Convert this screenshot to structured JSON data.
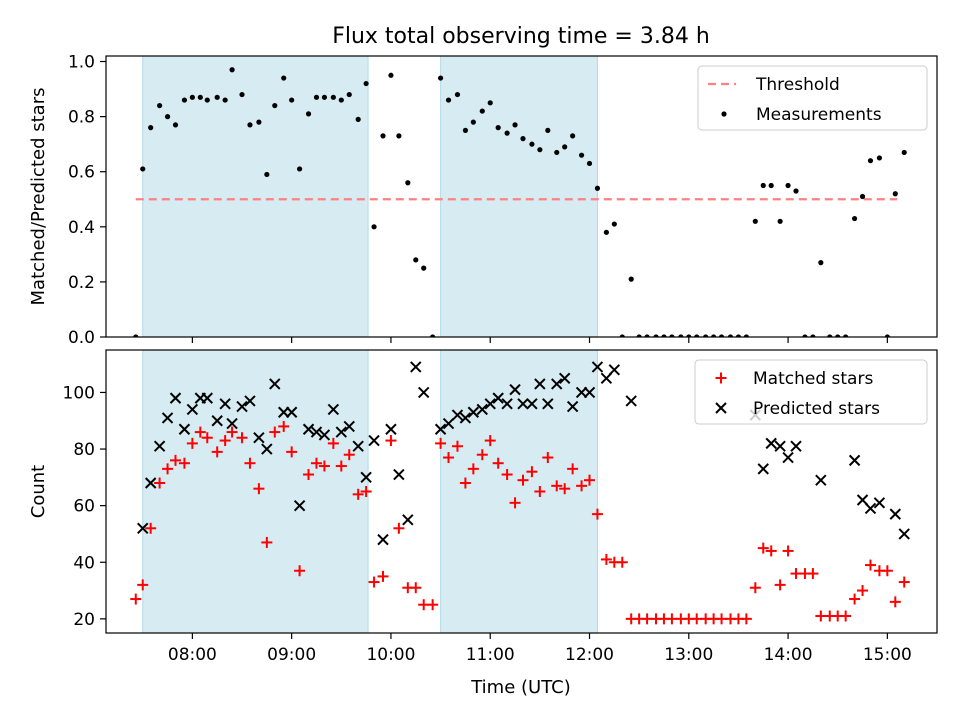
{
  "title": "Flux total observing time = 3.84 h",
  "xlabel": "Time (UTC)",
  "xticks": [
    {
      "t": 8,
      "label": "08:00"
    },
    {
      "t": 9,
      "label": "09:00"
    },
    {
      "t": 10,
      "label": "10:00"
    },
    {
      "t": 11,
      "label": "11:00"
    },
    {
      "t": 12,
      "label": "12:00"
    },
    {
      "t": 13,
      "label": "13:00"
    },
    {
      "t": 14,
      "label": "14:00"
    },
    {
      "t": 15,
      "label": "15:00"
    }
  ],
  "colors": {
    "shade": "#add8e6",
    "threshold": "#ff8080",
    "measurement": "#000000",
    "matched": "#ff0000",
    "predicted": "#000000"
  },
  "chart_data": [
    {
      "type": "scatter",
      "panel": "top",
      "ylabel": "Matched/Predicted stars",
      "xlim": [
        7.13,
        15.5
      ],
      "ylim": [
        0,
        1.02
      ],
      "yticks": [
        "0.0",
        "0.2",
        "0.4",
        "0.6",
        "0.8",
        "1.0"
      ],
      "ytick_values": [
        0,
        0.2,
        0.4,
        0.6,
        0.8,
        1.0
      ],
      "shaded_intervals": [
        [
          7.5,
          9.77
        ],
        [
          10.5,
          12.08
        ]
      ],
      "threshold": {
        "name": "Threshold",
        "y": 0.5,
        "x_range": [
          7.43,
          15.1
        ]
      },
      "legend": {
        "position": "top-right",
        "entries": [
          "Threshold",
          "Measurements"
        ]
      },
      "series": [
        {
          "name": "Measurements",
          "x": [
            7.43,
            7.5,
            7.58,
            7.67,
            7.75,
            7.83,
            7.92,
            8.0,
            8.08,
            8.15,
            8.25,
            8.33,
            8.4,
            8.5,
            8.58,
            8.67,
            8.75,
            8.83,
            8.92,
            9.0,
            9.08,
            9.17,
            9.25,
            9.33,
            9.42,
            9.5,
            9.58,
            9.67,
            9.75,
            9.83,
            9.92,
            10.0,
            10.08,
            10.17,
            10.25,
            10.33,
            10.42,
            10.5,
            10.58,
            10.67,
            10.75,
            10.83,
            10.92,
            11.0,
            11.08,
            11.17,
            11.25,
            11.33,
            11.42,
            11.5,
            11.58,
            11.67,
            11.75,
            11.83,
            11.92,
            12.0,
            12.08,
            12.17,
            12.25,
            12.33,
            12.42,
            12.5,
            12.58,
            12.67,
            12.75,
            12.83,
            12.92,
            13.0,
            13.08,
            13.17,
            13.25,
            13.33,
            13.42,
            13.5,
            13.58,
            13.67,
            13.75,
            13.83,
            13.92,
            14.0,
            14.08,
            14.17,
            14.25,
            14.33,
            14.42,
            14.5,
            14.58,
            14.67,
            14.75,
            14.83,
            14.92,
            15.0,
            15.08,
            15.17
          ],
          "y": [
            0.0,
            0.61,
            0.76,
            0.84,
            0.8,
            0.77,
            0.86,
            0.87,
            0.87,
            0.86,
            0.87,
            0.86,
            0.97,
            0.88,
            0.77,
            0.78,
            0.59,
            0.84,
            0.94,
            0.86,
            0.61,
            0.81,
            0.87,
            0.87,
            0.87,
            0.86,
            0.88,
            0.79,
            0.92,
            0.4,
            0.73,
            0.95,
            0.73,
            0.56,
            0.28,
            0.25,
            0.0,
            0.94,
            0.86,
            0.88,
            0.75,
            0.78,
            0.82,
            0.85,
            0.76,
            0.74,
            0.77,
            0.72,
            0.7,
            0.68,
            0.75,
            0.67,
            0.69,
            0.73,
            0.66,
            0.63,
            0.54,
            0.38,
            0.41,
            0.0,
            0.21,
            0.0,
            0.0,
            0.0,
            0.0,
            0.0,
            0.0,
            0.0,
            0.0,
            0.0,
            0.0,
            0.0,
            0.0,
            0.0,
            0.0,
            0.42,
            0.55,
            0.55,
            0.42,
            0.55,
            0.53,
            0.0,
            0.0,
            0.27,
            0.0,
            0.0,
            0.0,
            0.43,
            0.51,
            0.64,
            0.65,
            0.0,
            0.52,
            0.67
          ]
        }
      ]
    },
    {
      "type": "scatter",
      "panel": "bottom",
      "ylabel": "Count",
      "xlim": [
        7.13,
        15.5
      ],
      "ylim": [
        15,
        115
      ],
      "yticks": [
        "20",
        "40",
        "60",
        "80",
        "100"
      ],
      "ytick_values": [
        20,
        40,
        60,
        80,
        100
      ],
      "shaded_intervals": [
        [
          7.5,
          9.77
        ],
        [
          10.5,
          12.08
        ]
      ],
      "legend": {
        "position": "top-right",
        "entries": [
          "Matched stars",
          "Predicted stars"
        ]
      },
      "series": [
        {
          "name": "Matched stars",
          "marker": "+",
          "x": [
            7.43,
            7.5,
            7.58,
            7.67,
            7.75,
            7.83,
            7.92,
            8.0,
            8.08,
            8.15,
            8.25,
            8.33,
            8.4,
            8.5,
            8.58,
            8.67,
            8.75,
            8.83,
            8.92,
            9.0,
            9.08,
            9.17,
            9.25,
            9.33,
            9.42,
            9.5,
            9.58,
            9.67,
            9.75,
            9.83,
            9.92,
            10.0,
            10.08,
            10.17,
            10.25,
            10.33,
            10.42,
            10.5,
            10.58,
            10.67,
            10.75,
            10.83,
            10.92,
            11.0,
            11.08,
            11.17,
            11.25,
            11.33,
            11.42,
            11.5,
            11.58,
            11.67,
            11.75,
            11.83,
            11.92,
            12.0,
            12.08,
            12.17,
            12.25,
            12.33,
            12.42,
            12.5,
            12.58,
            12.67,
            12.75,
            12.83,
            12.92,
            13.0,
            13.08,
            13.17,
            13.25,
            13.33,
            13.42,
            13.5,
            13.58,
            13.67,
            13.75,
            13.83,
            13.92,
            14.0,
            14.08,
            14.17,
            14.25,
            14.33,
            14.42,
            14.5,
            14.58,
            14.67,
            14.75,
            14.83,
            14.92,
            15.0,
            15.08,
            15.17
          ],
          "y": [
            27,
            32,
            52,
            68,
            73,
            76,
            75,
            82,
            86,
            84,
            79,
            83,
            86,
            84,
            75,
            66,
            47,
            86,
            88,
            79,
            37,
            71,
            75,
            74,
            82,
            74,
            78,
            64,
            65,
            33,
            35,
            83,
            52,
            31,
            31,
            25,
            25,
            82,
            77,
            81,
            68,
            73,
            78,
            83,
            75,
            71,
            61,
            69,
            72,
            65,
            77,
            67,
            66,
            73,
            67,
            69,
            57,
            41,
            40,
            40,
            20,
            20,
            20,
            20,
            20,
            20,
            20,
            20,
            20,
            20,
            20,
            20,
            20,
            20,
            20,
            31,
            45,
            44,
            32,
            44,
            36,
            36,
            36,
            21,
            21,
            21,
            21,
            27,
            30,
            39,
            37,
            37,
            26,
            33
          ]
        },
        {
          "name": "Predicted stars",
          "marker": "x",
          "x": [
            7.5,
            7.58,
            7.67,
            7.75,
            7.83,
            7.92,
            8.0,
            8.08,
            8.15,
            8.25,
            8.33,
            8.4,
            8.5,
            8.58,
            8.67,
            8.75,
            8.83,
            8.92,
            9.0,
            9.08,
            9.17,
            9.25,
            9.33,
            9.42,
            9.5,
            9.58,
            9.67,
            9.75,
            9.83,
            9.92,
            10.0,
            10.08,
            10.17,
            10.25,
            10.33,
            10.5,
            10.58,
            10.67,
            10.75,
            10.83,
            10.92,
            11.0,
            11.08,
            11.17,
            11.25,
            11.33,
            11.42,
            11.5,
            11.58,
            11.67,
            11.75,
            11.83,
            11.92,
            12.0,
            12.08,
            12.17,
            12.25,
            12.42,
            13.67,
            13.75,
            13.83,
            13.92,
            14.0,
            14.08,
            14.33,
            14.67,
            14.75,
            14.83,
            14.92,
            15.08,
            15.17
          ],
          "y": [
            52,
            68,
            81,
            91,
            98,
            87,
            94,
            98,
            98,
            90,
            96,
            89,
            95,
            97,
            84,
            80,
            103,
            93,
            93,
            60,
            87,
            86,
            85,
            94,
            86,
            88,
            81,
            70,
            83,
            48,
            87,
            71,
            55,
            109,
            100,
            87,
            89,
            92,
            91,
            93,
            94,
            96,
            98,
            96,
            101,
            96,
            96,
            103,
            96,
            103,
            105,
            95,
            100,
            100,
            109,
            105,
            108,
            97,
            92,
            73,
            82,
            81,
            77,
            81,
            69,
            76,
            62,
            59,
            61,
            57,
            50
          ]
        }
      ]
    }
  ]
}
